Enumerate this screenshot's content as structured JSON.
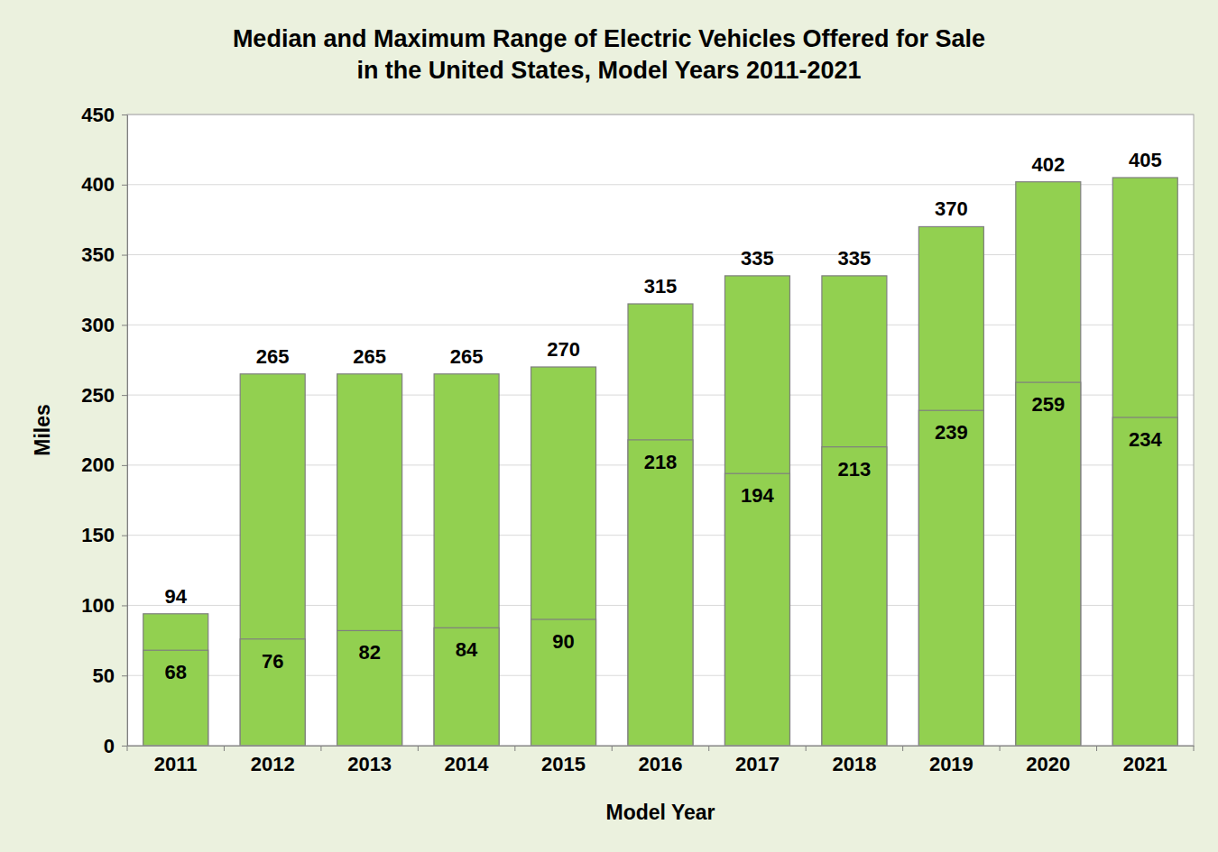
{
  "chart_data": {
    "type": "bar",
    "title": "Median and Maximum Range of Electric Vehicles Offered for Sale\nin the United States, Model Years 2011-2021",
    "x_label": "Model Year",
    "y_label": "Miles",
    "categories": [
      "2011",
      "2012",
      "2013",
      "2014",
      "2015",
      "2016",
      "2017",
      "2018",
      "2019",
      "2020",
      "2021"
    ],
    "series": [
      {
        "type": "bar",
        "color": "#92d050",
        "values": [
          94,
          265,
          265,
          265,
          270,
          315,
          335,
          335,
          370,
          402,
          405
        ]
      },
      {
        "type": "bar",
        "color": "#92d050",
        "values": [
          68,
          76,
          82,
          84,
          90,
          218,
          194,
          213,
          239,
          259,
          234
        ]
      }
    ],
    "stacked": false,
    "data_labels": true,
    "ylim": [
      0,
      450
    ],
    "yticks": [
      0,
      50,
      100,
      150,
      200,
      250,
      300,
      350,
      400,
      450
    ],
    "grid": true
  }
}
